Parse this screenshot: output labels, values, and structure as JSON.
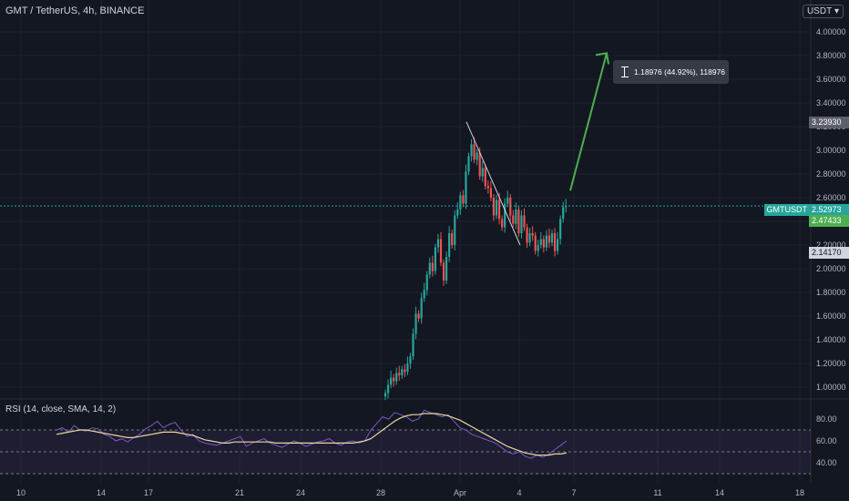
{
  "header": {
    "title": "GMT / TetherUS, 4h, BINANCE"
  },
  "currency_button": {
    "label": "USDT",
    "icon": "chevron-down-icon"
  },
  "measure_tooltip": {
    "text": "1.18976 (44.92%), 118976",
    "icon": "range-measure-icon"
  },
  "price_tags": {
    "symbol": "GMTUSDT",
    "last_price": "2.52973",
    "ma_value": "2.47433",
    "high": "3.23930",
    "low": "2.14170"
  },
  "rsi_header": {
    "label": "RSI (14, close, SMA, 14, 2)"
  },
  "colors": {
    "up": "#26a69a",
    "down": "#ef5350",
    "arrow": "#4caf50",
    "rsi": "#7e57c2",
    "rsi_ma": "#e8d8a0",
    "band": "#7e57c2"
  },
  "chart_data": [
    {
      "type": "candlestick",
      "symbol": "GMTUSDT",
      "y_axis_ticks": [
        "4.00000",
        "3.80000",
        "3.60000",
        "3.40000",
        "3.20000",
        "3.00000",
        "2.80000",
        "2.60000",
        "2.40000",
        "2.20000",
        "2.00000",
        "1.80000",
        "1.60000",
        "1.40000",
        "1.20000",
        "1.00000"
      ],
      "x_axis_ticks": [
        "10",
        "14",
        "17",
        "21",
        "24",
        "28",
        "Apr",
        "4",
        "7",
        "11",
        "14",
        "18"
      ],
      "ylim": [
        0.95,
        4.1
      ],
      "close_series": [
        0.95,
        1.02,
        1.08,
        1.05,
        1.12,
        1.1,
        1.15,
        1.13,
        1.2,
        1.26,
        1.45,
        1.62,
        1.58,
        1.75,
        1.82,
        1.95,
        2.05,
        1.98,
        2.18,
        2.25,
        2.05,
        1.9,
        2.1,
        2.3,
        2.2,
        2.45,
        2.5,
        2.62,
        2.55,
        2.82,
        2.95,
        3.05,
        2.92,
        2.98,
        2.78,
        2.85,
        2.7,
        2.68,
        2.6,
        2.45,
        2.58,
        2.42,
        2.35,
        2.55,
        2.6,
        2.45,
        2.38,
        2.5,
        2.3,
        2.45,
        2.35,
        2.22,
        2.3,
        2.28,
        2.15,
        2.2,
        2.25,
        2.18,
        2.28,
        2.22,
        2.3,
        2.15,
        2.25,
        2.42,
        2.52,
        2.53
      ],
      "last_price": 2.52973,
      "trendline": {
        "from_price": 3.24,
        "to_price": 2.2
      },
      "projection_arrow": {
        "from_price": 2.66,
        "to_price": 3.82
      }
    },
    {
      "type": "line",
      "name": "RSI (14, close, SMA, 14, 2)",
      "y_axis_ticks": [
        "80.00",
        "60.00",
        "40.00"
      ],
      "ylim": [
        25,
        95
      ],
      "bands": [
        70,
        50,
        30
      ],
      "series": [
        {
          "name": "RSI",
          "values": [
            70,
            72,
            68,
            74,
            70,
            69,
            72,
            71,
            66,
            64,
            60,
            62,
            59,
            63,
            66,
            71,
            74,
            78,
            72,
            75,
            77,
            70,
            64,
            66,
            60,
            58,
            57,
            56,
            58,
            60,
            62,
            64,
            55,
            58,
            60,
            62,
            58,
            56,
            54,
            57,
            60,
            58,
            55,
            57,
            59,
            60,
            62,
            58,
            56,
            59,
            60,
            58,
            60,
            70,
            76,
            82,
            80,
            86,
            84,
            82,
            78,
            80,
            88,
            86,
            84,
            82,
            84,
            78,
            72,
            70,
            66,
            64,
            62,
            60,
            58,
            54,
            50,
            48,
            50,
            46,
            44,
            47,
            45,
            48,
            52,
            56,
            60
          ]
        },
        {
          "name": "RSI-based MA",
          "values": [
            66,
            67,
            68,
            69,
            70,
            70,
            69,
            68,
            67,
            66,
            65,
            64,
            63,
            63,
            64,
            65,
            66,
            67,
            68,
            68,
            68,
            67,
            66,
            65,
            63,
            61,
            60,
            59,
            58,
            58,
            59,
            59,
            59,
            59,
            59,
            59,
            59,
            58,
            58,
            58,
            58,
            58,
            58,
            58,
            58,
            58,
            58,
            58,
            58,
            58,
            58,
            59,
            60,
            62,
            66,
            70,
            74,
            78,
            81,
            83,
            84,
            84,
            85,
            85,
            85,
            84,
            83,
            81,
            79,
            76,
            73,
            70,
            67,
            64,
            61,
            58,
            55,
            53,
            51,
            49,
            48,
            47,
            47,
            47,
            48,
            48,
            49
          ]
        }
      ]
    }
  ]
}
